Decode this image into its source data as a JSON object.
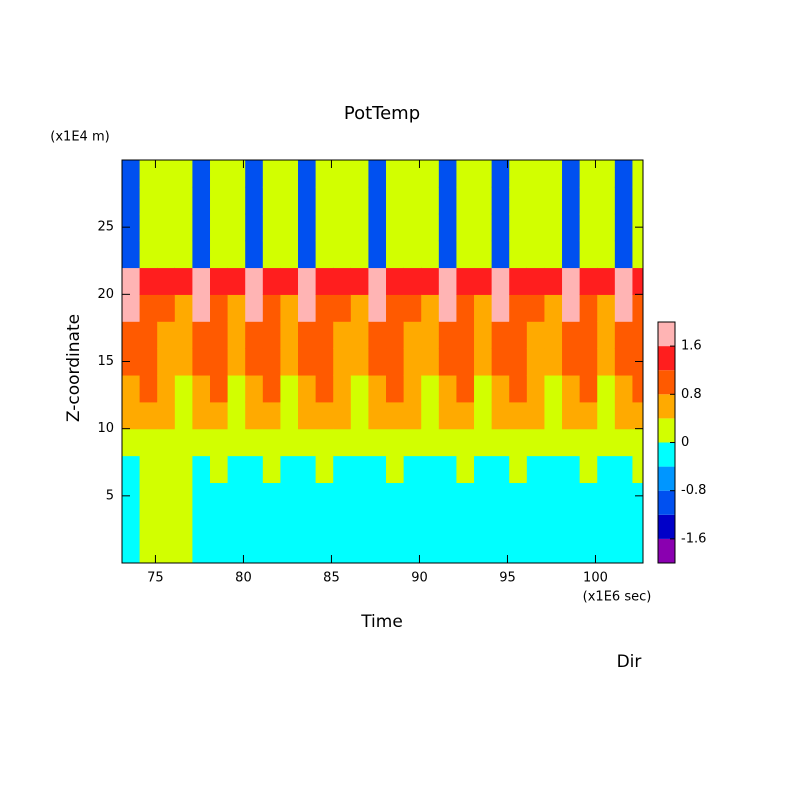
{
  "chart_data": {
    "type": "contour",
    "title": "PotTemp",
    "xlabel": "Time",
    "xunit": "(x1E6 sec)",
    "ylabel": "Z-coordinate",
    "yunit": "(x1E4 m)",
    "annotation": "Dir",
    "xlim": [
      73.1,
      102.7
    ],
    "ylim": [
      0,
      30
    ],
    "xticks": [
      75,
      80,
      85,
      90,
      95,
      100
    ],
    "yticks": [
      5,
      10,
      15,
      20,
      25
    ],
    "x": [
      73.6,
      74.6,
      75.6,
      76.6,
      77.6,
      78.6,
      79.6,
      80.6,
      81.6,
      82.6,
      83.6,
      84.6,
      85.6,
      86.6,
      87.6,
      88.6,
      89.6,
      90.6,
      91.6,
      92.6,
      93.6,
      94.6,
      95.6,
      96.6,
      97.6,
      98.6,
      99.6,
      100.6,
      101.6,
      102.6
    ],
    "y": [
      1,
      3,
      5,
      7,
      9,
      11,
      13,
      15,
      17,
      19,
      21,
      23,
      25,
      27,
      29
    ],
    "z": [
      [
        -0.2,
        -0.2,
        -0.2,
        -0.2,
        0.2,
        0.6,
        0.6,
        1.0,
        1.0,
        1.8,
        2.0,
        -1.0,
        -1.0,
        -1.0,
        -1.0
      ],
      [
        0.2,
        0.2,
        0.2,
        0.2,
        0.2,
        0.6,
        1.0,
        1.0,
        1.0,
        1.0,
        1.4,
        0.2,
        0.2,
        0.2,
        0.2
      ],
      [
        0.2,
        0.2,
        0.2,
        0.2,
        0.2,
        0.6,
        0.6,
        0.6,
        0.6,
        1.0,
        1.4,
        0.2,
        0.2,
        0.2,
        0.2
      ],
      [
        0.2,
        0.2,
        0.2,
        0.2,
        0.2,
        0.2,
        0.2,
        0.6,
        0.6,
        0.6,
        1.4,
        0.2,
        0.2,
        0.2,
        0.2
      ],
      [
        -0.2,
        -0.2,
        -0.2,
        -0.2,
        0.2,
        0.6,
        0.6,
        1.0,
        1.0,
        1.8,
        2.0,
        -1.0,
        -1.0,
        -1.0,
        -1.0
      ],
      [
        -0.2,
        -0.2,
        -0.2,
        0.2,
        0.2,
        0.6,
        1.0,
        1.0,
        1.0,
        1.0,
        1.4,
        0.2,
        0.2,
        0.2,
        0.2
      ],
      [
        -0.2,
        -0.2,
        -0.2,
        -0.2,
        0.2,
        0.2,
        0.2,
        0.6,
        0.6,
        0.6,
        1.4,
        0.2,
        0.2,
        0.2,
        0.2
      ],
      [
        -0.2,
        -0.2,
        -0.2,
        -0.2,
        0.2,
        0.6,
        0.6,
        1.0,
        1.0,
        1.8,
        2.0,
        -1.0,
        -1.0,
        -1.0,
        -1.0
      ],
      [
        -0.2,
        -0.2,
        -0.2,
        0.2,
        0.2,
        0.6,
        1.0,
        1.0,
        1.0,
        1.0,
        1.4,
        0.2,
        0.2,
        0.2,
        0.2
      ],
      [
        -0.2,
        -0.2,
        -0.2,
        -0.2,
        0.2,
        0.2,
        0.2,
        0.6,
        0.6,
        0.6,
        1.4,
        0.2,
        0.2,
        0.2,
        0.2
      ],
      [
        -0.2,
        -0.2,
        -0.2,
        -0.2,
        0.2,
        0.6,
        0.6,
        1.0,
        1.0,
        1.8,
        2.0,
        -1.0,
        -1.0,
        -1.0,
        -1.0
      ],
      [
        -0.2,
        -0.2,
        -0.2,
        0.2,
        0.2,
        0.6,
        1.0,
        1.0,
        1.0,
        1.0,
        1.4,
        0.2,
        0.2,
        0.2,
        0.2
      ],
      [
        -0.2,
        -0.2,
        -0.2,
        -0.2,
        0.2,
        0.6,
        0.6,
        0.6,
        0.6,
        1.0,
        1.4,
        0.2,
        0.2,
        0.2,
        0.2
      ],
      [
        -0.2,
        -0.2,
        -0.2,
        -0.2,
        0.2,
        0.2,
        0.2,
        0.6,
        0.6,
        0.6,
        1.4,
        0.2,
        0.2,
        0.2,
        0.2
      ],
      [
        -0.2,
        -0.2,
        -0.2,
        -0.2,
        0.2,
        0.6,
        0.6,
        1.0,
        1.0,
        1.8,
        2.0,
        -1.0,
        -1.0,
        -1.0,
        -1.0
      ],
      [
        -0.2,
        -0.2,
        -0.2,
        0.2,
        0.2,
        0.6,
        1.0,
        1.0,
        1.0,
        1.0,
        1.4,
        0.2,
        0.2,
        0.2,
        0.2
      ],
      [
        -0.2,
        -0.2,
        -0.2,
        -0.2,
        0.2,
        0.6,
        0.6,
        0.6,
        0.6,
        1.0,
        1.4,
        0.2,
        0.2,
        0.2,
        0.2
      ],
      [
        -0.2,
        -0.2,
        -0.2,
        -0.2,
        0.2,
        0.2,
        0.2,
        0.6,
        0.6,
        0.6,
        1.4,
        0.2,
        0.2,
        0.2,
        0.2
      ],
      [
        -0.2,
        -0.2,
        -0.2,
        -0.2,
        0.2,
        0.6,
        0.6,
        1.0,
        1.0,
        1.8,
        2.0,
        -1.0,
        -1.0,
        -1.0,
        -1.0
      ],
      [
        -0.2,
        -0.2,
        -0.2,
        0.2,
        0.2,
        0.6,
        1.0,
        1.0,
        1.0,
        1.0,
        1.4,
        0.2,
        0.2,
        0.2,
        0.2
      ],
      [
        -0.2,
        -0.2,
        -0.2,
        -0.2,
        0.2,
        0.2,
        0.2,
        0.6,
        0.6,
        0.6,
        1.4,
        0.2,
        0.2,
        0.2,
        0.2
      ],
      [
        -0.2,
        -0.2,
        -0.2,
        -0.2,
        0.2,
        0.6,
        0.6,
        1.0,
        1.0,
        1.8,
        2.0,
        -1.0,
        -1.0,
        -1.0,
        -1.0
      ],
      [
        -0.2,
        -0.2,
        -0.2,
        0.2,
        0.2,
        0.6,
        1.0,
        1.0,
        1.0,
        1.0,
        1.4,
        0.2,
        0.2,
        0.2,
        0.2
      ],
      [
        -0.2,
        -0.2,
        -0.2,
        -0.2,
        0.2,
        0.6,
        0.6,
        0.6,
        0.6,
        1.0,
        1.4,
        0.2,
        0.2,
        0.2,
        0.2
      ],
      [
        -0.2,
        -0.2,
        -0.2,
        -0.2,
        0.2,
        0.2,
        0.2,
        0.6,
        0.6,
        0.6,
        1.4,
        0.2,
        0.2,
        0.2,
        0.2
      ],
      [
        -0.2,
        -0.2,
        -0.2,
        -0.2,
        0.2,
        0.6,
        0.6,
        1.0,
        1.0,
        1.8,
        2.0,
        -1.0,
        -1.0,
        -1.0,
        -1.0
      ],
      [
        -0.2,
        -0.2,
        -0.2,
        0.2,
        0.2,
        0.6,
        1.0,
        1.0,
        1.0,
        1.0,
        1.4,
        0.2,
        0.2,
        0.2,
        0.2
      ],
      [
        -0.2,
        -0.2,
        -0.2,
        -0.2,
        0.2,
        0.2,
        0.2,
        0.6,
        0.6,
        0.6,
        1.4,
        0.2,
        0.2,
        0.2,
        0.2
      ],
      [
        -0.2,
        -0.2,
        -0.2,
        -0.2,
        0.2,
        0.6,
        0.6,
        1.0,
        1.0,
        1.8,
        2.0,
        -1.0,
        -1.0,
        -1.0,
        -1.0
      ],
      [
        -0.2,
        -0.2,
        -0.2,
        0.2,
        0.2,
        0.6,
        1.0,
        1.0,
        1.0,
        1.0,
        1.4,
        0.2,
        0.2,
        0.2,
        0.2
      ]
    ],
    "levels": [
      -2,
      -1.6,
      -1.2,
      -0.8,
      -0.4,
      0,
      0.4,
      0.8,
      1.2,
      1.6,
      2
    ],
    "colors": [
      "#8a00b0",
      "#0000c8",
      "#0050f0",
      "#0096ff",
      "#00ffff",
      "#d2ff00",
      "#ffaa00",
      "#ff5a00",
      "#ff1e1e",
      "#ffb4b4"
    ],
    "colorbar_ticks": [
      1.6,
      0.8,
      0,
      -0.8,
      -1.6
    ]
  }
}
